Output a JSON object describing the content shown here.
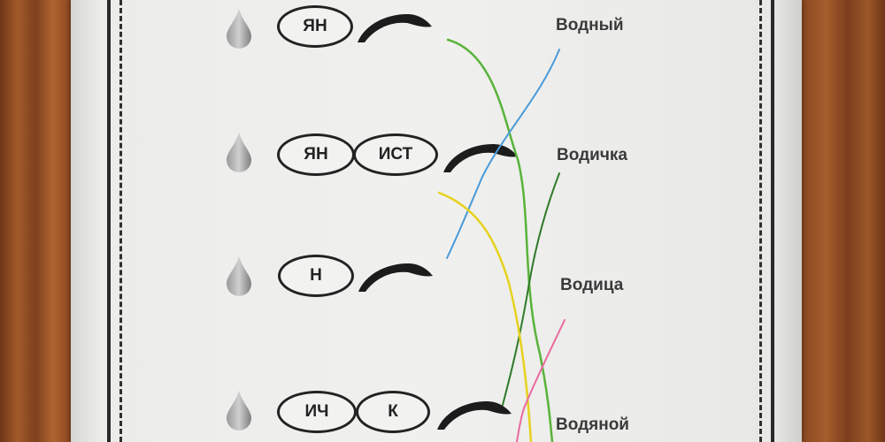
{
  "rows": [
    {
      "syllables": [
        "ЯН"
      ]
    },
    {
      "syllables": [
        "ЯН",
        "ИСТ"
      ]
    },
    {
      "syllables": [
        "Н"
      ]
    },
    {
      "syllables": [
        "ИЧ",
        "К"
      ]
    }
  ],
  "words": [
    "Водный",
    "Водичка",
    "Водица",
    "Водяной"
  ],
  "icons": {
    "drop": "water-drop-icon",
    "sprout": "word-root-sprout-icon"
  },
  "colors": {
    "pencil_green": "#58b33a",
    "pencil_blue": "#4a9ad8",
    "pencil_dark_green": "#2f7a2a",
    "pencil_yellow": "#e6d21e",
    "pencil_pink": "#e86aa0"
  }
}
